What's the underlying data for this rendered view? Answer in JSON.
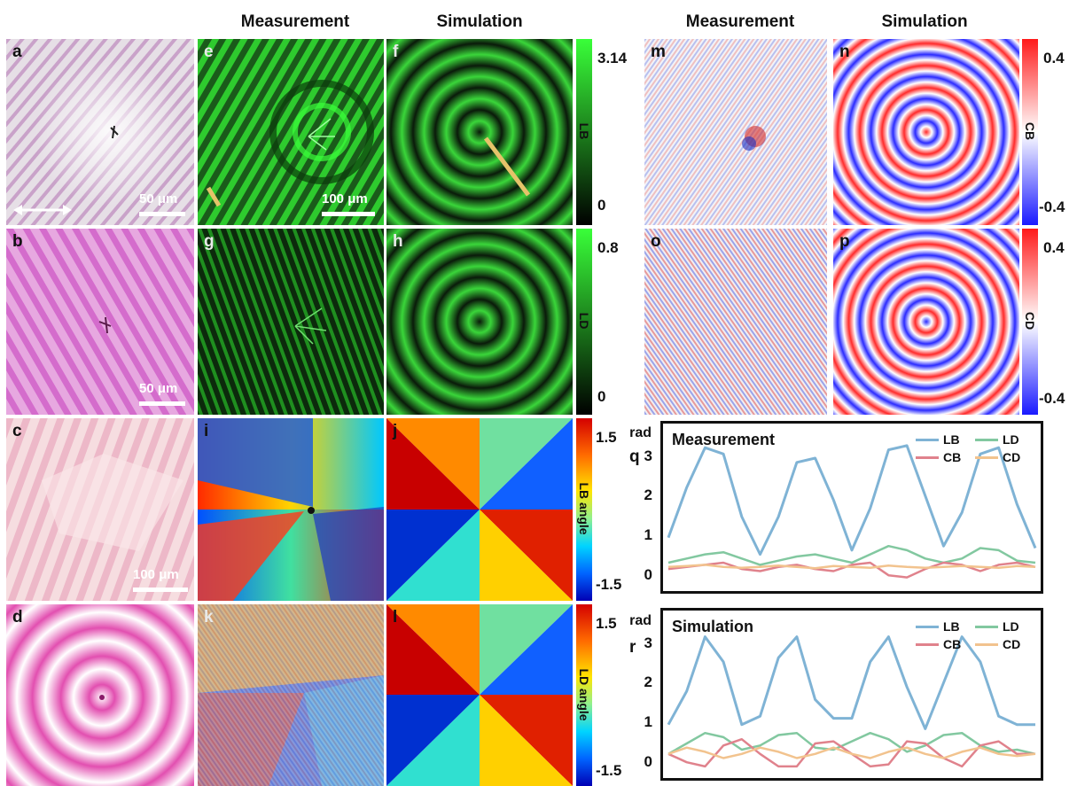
{
  "headers": {
    "left_measurement": "Measurement",
    "left_simulation": "Simulation",
    "right_measurement": "Measurement",
    "right_simulation": "Simulation"
  },
  "panels": {
    "a": "a",
    "b": "b",
    "c": "c",
    "d": "d",
    "e": "e",
    "f": "f",
    "g": "g",
    "h": "h",
    "i": "i",
    "j": "j",
    "k": "k",
    "l": "l",
    "m": "m",
    "n": "n",
    "o": "o",
    "p": "p",
    "q": "q",
    "r": "r"
  },
  "scalebars": {
    "a": "50 μm",
    "b": "50 μm",
    "c": "100 μm",
    "e": "100 μm"
  },
  "colorbars": {
    "lb": {
      "title": "LB",
      "max": "3.14",
      "min": "0"
    },
    "ld": {
      "title": "LD",
      "max": "0.8",
      "min": "0"
    },
    "lb_angle": {
      "title": "LB angle",
      "max": "1.5",
      "min": "-1.5"
    },
    "ld_angle": {
      "title": "LD angle",
      "max": "1.5",
      "min": "-1.5"
    },
    "cb": {
      "title": "CB",
      "max": "0.4",
      "min": "-0.4"
    },
    "cd": {
      "title": "CD",
      "max": "0.4",
      "min": "-0.4"
    }
  },
  "colors": {
    "LB": "#7fb3d5",
    "LD": "#82c8a0",
    "CB": "#e0828c",
    "CD": "#f2c38e",
    "green": "#39ff39",
    "pink": "#e75fb8",
    "cb_red": "#ff1a1a",
    "cb_blue": "#1a1aff"
  },
  "chart_data": [
    {
      "type": "line",
      "title": "Measurement",
      "ylabel": "rad",
      "yticks": [
        "0",
        "1",
        "2",
        "3"
      ],
      "ylim": [
        -0.45,
        3.3
      ],
      "x": [
        0,
        0.05,
        0.1,
        0.15,
        0.2,
        0.25,
        0.3,
        0.35,
        0.4,
        0.45,
        0.5,
        0.55,
        0.6,
        0.65,
        0.7,
        0.75,
        0.8,
        0.85,
        0.9,
        0.95,
        1
      ],
      "series": [
        {
          "name": "LB",
          "values": [
            0.7,
            1.9,
            2.85,
            2.7,
            1.2,
            0.3,
            1.2,
            2.5,
            2.6,
            1.6,
            0.4,
            1.4,
            2.8,
            2.9,
            1.7,
            0.5,
            1.3,
            2.7,
            2.85,
            1.5,
            0.45
          ]
        },
        {
          "name": "LD",
          "values": [
            0.1,
            0.2,
            0.3,
            0.35,
            0.2,
            0.05,
            0.15,
            0.25,
            0.3,
            0.2,
            0.1,
            0.3,
            0.5,
            0.4,
            0.2,
            0.1,
            0.2,
            0.45,
            0.4,
            0.15,
            0.1
          ]
        },
        {
          "name": "CB",
          "values": [
            -0.05,
            0.0,
            0.05,
            0.1,
            -0.05,
            -0.1,
            0.0,
            0.05,
            -0.05,
            -0.1,
            0.05,
            0.1,
            -0.2,
            -0.25,
            -0.05,
            0.1,
            0.05,
            -0.1,
            0.05,
            0.1,
            0.0
          ]
        },
        {
          "name": "CD",
          "values": [
            0.0,
            0.02,
            0.05,
            0.0,
            -0.02,
            0.0,
            0.03,
            0.0,
            -0.03,
            0.02,
            0.0,
            -0.02,
            0.03,
            0.0,
            -0.02,
            0.0,
            0.02,
            0.0,
            -0.02,
            0.02,
            0.0
          ]
        }
      ],
      "legend": "top-right"
    },
    {
      "type": "line",
      "title": "Simulation",
      "ylabel": "rad",
      "yticks": [
        "0",
        "1",
        "2",
        "3"
      ],
      "ylim": [
        -0.45,
        3.3
      ],
      "x": [
        0,
        0.05,
        0.1,
        0.15,
        0.2,
        0.25,
        0.3,
        0.35,
        0.4,
        0.45,
        0.5,
        0.55,
        0.6,
        0.65,
        0.7,
        0.75,
        0.8,
        0.85,
        0.9,
        0.95,
        1
      ],
      "series": [
        {
          "name": "LB",
          "values": [
            0.7,
            1.5,
            2.8,
            2.2,
            0.7,
            0.9,
            2.3,
            2.8,
            1.3,
            0.85,
            0.85,
            2.2,
            2.8,
            1.6,
            0.6,
            1.7,
            2.8,
            2.2,
            0.9,
            0.7,
            0.7
          ]
        },
        {
          "name": "LD",
          "values": [
            0.0,
            0.25,
            0.5,
            0.4,
            0.1,
            0.2,
            0.45,
            0.5,
            0.15,
            0.1,
            0.3,
            0.5,
            0.35,
            0.05,
            0.2,
            0.45,
            0.5,
            0.2,
            0.05,
            0.1,
            0.0
          ]
        },
        {
          "name": "CB",
          "values": [
            0.0,
            -0.2,
            -0.3,
            0.2,
            0.35,
            0.0,
            -0.3,
            -0.3,
            0.25,
            0.3,
            0.0,
            -0.3,
            -0.25,
            0.3,
            0.25,
            -0.1,
            -0.3,
            0.2,
            0.3,
            0.0,
            0.0
          ]
        },
        {
          "name": "CD",
          "values": [
            0.0,
            0.15,
            0.05,
            -0.1,
            0.0,
            0.15,
            0.05,
            -0.1,
            0.0,
            0.15,
            0.0,
            -0.1,
            0.05,
            0.15,
            0.0,
            -0.1,
            0.05,
            0.15,
            0.0,
            -0.05,
            0.0
          ]
        }
      ],
      "legend": "top-right"
    }
  ]
}
